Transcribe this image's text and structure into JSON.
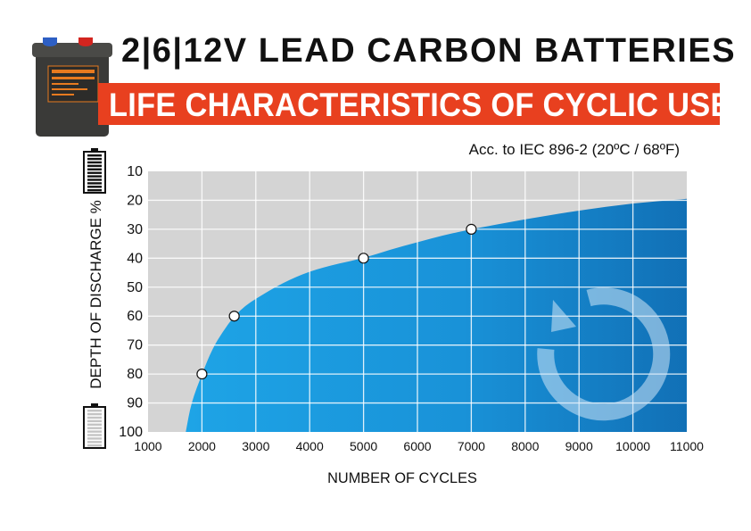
{
  "header": {
    "title": "2|6|12V LEAD CARBON BATTERIES",
    "subtitle": "LIFE CHARACTERISTICS OF CYCLIC USE",
    "standard_note": "Acc. to IEC 896-2 (20ºC / 68ºF)"
  },
  "colors": {
    "banner": "#e8401f",
    "plot_background": "#d4d4d4",
    "area_light": "#1ea4e6",
    "area_dark": "#1170b6"
  },
  "icons": [
    "full-battery-icon",
    "empty-battery-icon",
    "cycle-arrow-icon",
    "battery-product-photo"
  ],
  "chart_data": {
    "type": "area",
    "title": "LIFE CHARACTERISTICS OF CYCLIC USE",
    "xlabel": "NUMBER OF CYCLES",
    "ylabel": "DEPTH OF DISCHARGE %",
    "xlim": [
      1000,
      11000
    ],
    "ylim": [
      10,
      100
    ],
    "y_inverted": true,
    "grid": true,
    "x_ticks": [
      "1000",
      "2000",
      "3000",
      "4000",
      "5000",
      "6000",
      "7000",
      "8000",
      "9000",
      "10000",
      "11000"
    ],
    "y_ticks": [
      "10",
      "20",
      "30",
      "40",
      "50",
      "60",
      "70",
      "80",
      "90",
      "100"
    ],
    "curve": {
      "x": [
        1700,
        1800,
        2000,
        2200,
        2400,
        2600,
        2800,
        3000,
        3500,
        4000,
        4500,
        5000,
        5500,
        6000,
        6500,
        7000,
        8000,
        9000,
        10000,
        11000
      ],
      "y": [
        100,
        90,
        80,
        71,
        65,
        60,
        56.5,
        54,
        48.5,
        44.5,
        42,
        40,
        37,
        34.5,
        32,
        30,
        26.5,
        23.5,
        21,
        19.5
      ]
    },
    "points": [
      {
        "x": 2000,
        "y": 80
      },
      {
        "x": 2600,
        "y": 60
      },
      {
        "x": 5000,
        "y": 40
      },
      {
        "x": 7000,
        "y": 30
      }
    ]
  }
}
